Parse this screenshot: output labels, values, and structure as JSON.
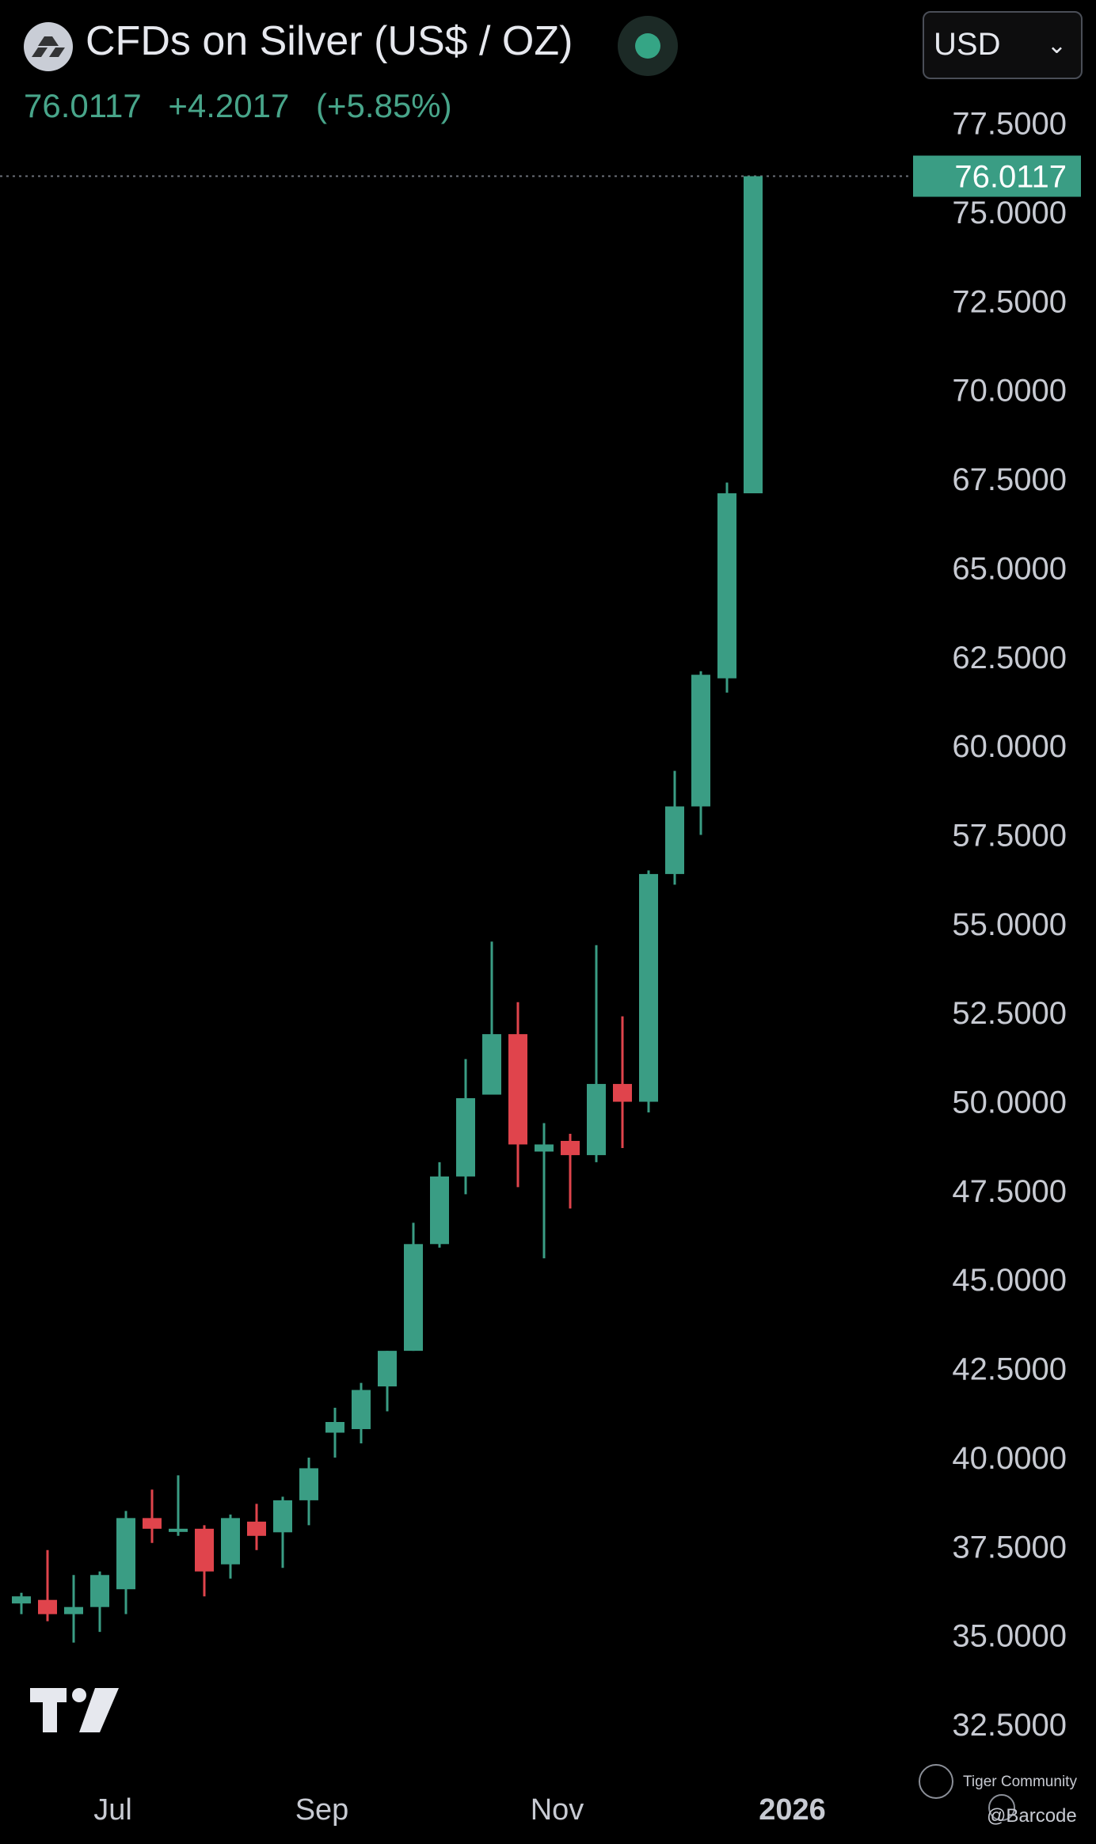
{
  "header": {
    "title": "CFDs on Silver (US$ / OZ)",
    "last_price": "76.0117",
    "change": "+4.2017",
    "change_pct": "(+5.85%)",
    "currency": "USD",
    "status_color": "#35a585"
  },
  "colors": {
    "up": "#3a9d84",
    "down": "#e0444c",
    "axis_text": "#c7cad2",
    "price_tag": "#3a9d84"
  },
  "watermark": {
    "line1": "Tiger Community",
    "line2": "@Barcode"
  },
  "chart_data": {
    "type": "candlestick",
    "title": "CFDs on Silver (US$ / OZ)",
    "interval": "weekly",
    "ylim": [
      31.5,
      79.0
    ],
    "y_ticks": [
      "77.5000",
      "75.0000",
      "72.5000",
      "70.0000",
      "67.5000",
      "65.0000",
      "62.5000",
      "60.0000",
      "57.5000",
      "55.0000",
      "52.5000",
      "50.0000",
      "47.5000",
      "45.0000",
      "42.5000",
      "40.0000",
      "37.5000",
      "35.0000",
      "32.5000"
    ],
    "x_labels": [
      {
        "label": "Jul",
        "index": 3.5
      },
      {
        "label": "Sep",
        "index": 11.5
      },
      {
        "label": "Nov",
        "index": 20.5
      },
      {
        "label": "2026",
        "index": 29.5,
        "bold": true
      }
    ],
    "last_price_label": "76.0117",
    "last_price": 76.0117,
    "candles": [
      {
        "o": 35.9,
        "h": 36.2,
        "l": 35.6,
        "c": 36.1
      },
      {
        "o": 36.0,
        "h": 37.4,
        "l": 35.4,
        "c": 35.6
      },
      {
        "o": 35.6,
        "h": 36.7,
        "l": 34.8,
        "c": 35.8
      },
      {
        "o": 35.8,
        "h": 36.8,
        "l": 35.1,
        "c": 36.7
      },
      {
        "o": 36.3,
        "h": 38.5,
        "l": 35.6,
        "c": 38.3
      },
      {
        "o": 38.3,
        "h": 39.1,
        "l": 37.6,
        "c": 38.0
      },
      {
        "o": 38.0,
        "h": 39.5,
        "l": 37.8,
        "c": 38.0
      },
      {
        "o": 38.0,
        "h": 38.1,
        "l": 36.1,
        "c": 36.8
      },
      {
        "o": 37.0,
        "h": 38.4,
        "l": 36.6,
        "c": 38.3
      },
      {
        "o": 38.2,
        "h": 38.7,
        "l": 37.4,
        "c": 37.8
      },
      {
        "o": 37.9,
        "h": 38.9,
        "l": 36.9,
        "c": 38.8
      },
      {
        "o": 38.8,
        "h": 40.0,
        "l": 38.1,
        "c": 39.7
      },
      {
        "o": 40.7,
        "h": 41.4,
        "l": 40.0,
        "c": 41.0
      },
      {
        "o": 40.8,
        "h": 42.1,
        "l": 40.4,
        "c": 41.9
      },
      {
        "o": 42.0,
        "h": 43.0,
        "l": 41.3,
        "c": 43.0
      },
      {
        "o": 43.0,
        "h": 46.6,
        "l": 43.0,
        "c": 46.0
      },
      {
        "o": 46.0,
        "h": 48.3,
        "l": 45.9,
        "c": 47.9
      },
      {
        "o": 47.9,
        "h": 51.2,
        "l": 47.4,
        "c": 50.1
      },
      {
        "o": 50.2,
        "h": 54.5,
        "l": 50.2,
        "c": 51.9
      },
      {
        "o": 51.9,
        "h": 52.8,
        "l": 47.6,
        "c": 48.8
      },
      {
        "o": 48.6,
        "h": 49.4,
        "l": 45.6,
        "c": 48.8
      },
      {
        "o": 48.9,
        "h": 49.1,
        "l": 47.0,
        "c": 48.5
      },
      {
        "o": 48.5,
        "h": 54.4,
        "l": 48.3,
        "c": 50.5
      },
      {
        "o": 50.5,
        "h": 52.4,
        "l": 48.7,
        "c": 50.0
      },
      {
        "o": 50.0,
        "h": 56.5,
        "l": 49.7,
        "c": 56.4
      },
      {
        "o": 56.4,
        "h": 59.3,
        "l": 56.1,
        "c": 58.3
      },
      {
        "o": 58.3,
        "h": 62.1,
        "l": 57.5,
        "c": 62.0
      },
      {
        "o": 61.9,
        "h": 67.4,
        "l": 61.5,
        "c": 67.1
      },
      {
        "o": 67.1,
        "h": 76.0117,
        "l": 67.1,
        "c": 76.0117
      }
    ]
  }
}
